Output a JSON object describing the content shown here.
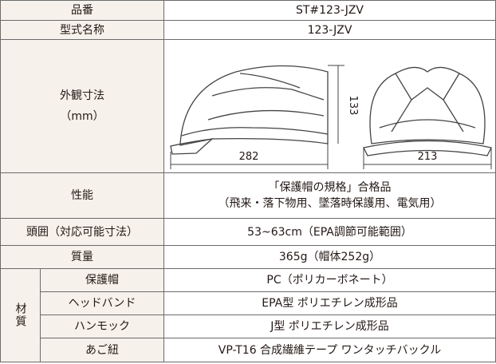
{
  "table": {
    "part_number": {
      "label": "品番",
      "value": "ST#123-JZV"
    },
    "model_name": {
      "label": "型式名称",
      "value": "123-JZV"
    },
    "dimensions": {
      "label": "外観寸法",
      "unit": "（mm）",
      "length": "282",
      "width": "213",
      "height": "133"
    },
    "performance": {
      "label": "性能",
      "lines": [
        "「保護帽の規格」合格品",
        "（飛来・落下物用、墜落時保護用、電気用）"
      ]
    },
    "head_size": {
      "label": "頭囲（対応可能寸法）",
      "value": "53~63cm（EPA調節可能範囲）"
    },
    "weight": {
      "label": "質量",
      "value": "365g（帽体252g）"
    },
    "material": {
      "label": "材質",
      "rows": [
        {
          "label": "保護帽",
          "value": "PC（ポリカーボネート）"
        },
        {
          "label": "ヘッドバンド",
          "value": "EPA型 ポリエチレン成形品"
        },
        {
          "label": "ハンモック",
          "value": "J型 ポリエチレン成形品"
        },
        {
          "label": "あご紐",
          "value": "VP-T16 合成繊維テープ ワンタッチバックル"
        }
      ]
    }
  }
}
